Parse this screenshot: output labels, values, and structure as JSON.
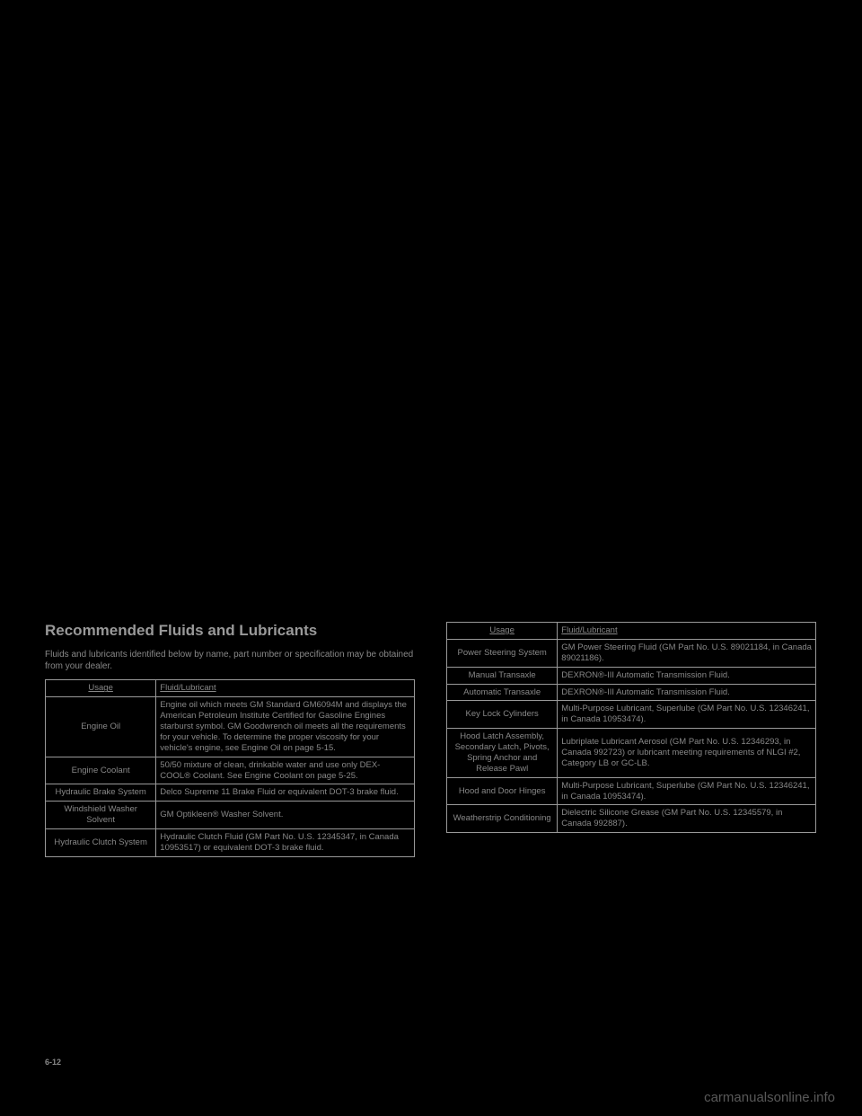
{
  "section_title": "Recommended Fluids and Lubricants",
  "intro": "Fluids and lubricants identified below by name, part number or specification may be obtained from your dealer.",
  "left_table": {
    "headers": [
      "Usage",
      "Fluid/Lubricant"
    ],
    "rows": [
      {
        "usage": "Engine Oil",
        "fluid": "Engine oil which meets GM Standard GM6094M and displays the American Petroleum Institute Certified for Gasoline Engines starburst symbol. GM Goodwrench oil meets all the requirements for your vehicle. To determine the proper viscosity for your vehicle's engine, see Engine Oil on page 5-15."
      },
      {
        "usage": "Engine Coolant",
        "fluid": "50/50 mixture of clean, drinkable water and use only DEX-COOL® Coolant. See Engine Coolant on page 5-25."
      },
      {
        "usage": "Hydraulic Brake System",
        "fluid": "Delco Supreme 11 Brake Fluid or equivalent DOT-3 brake fluid."
      },
      {
        "usage": "Windshield Washer Solvent",
        "fluid": "GM Optikleen® Washer Solvent."
      },
      {
        "usage": "Hydraulic Clutch System",
        "fluid": "Hydraulic Clutch Fluid (GM Part No. U.S. 12345347, in Canada 10953517) or equivalent DOT-3 brake fluid."
      }
    ]
  },
  "right_table": {
    "headers": [
      "Usage",
      "Fluid/Lubricant"
    ],
    "rows": [
      {
        "usage": "Power Steering System",
        "fluid": "GM Power Steering Fluid (GM Part No. U.S. 89021184, in Canada 89021186)."
      },
      {
        "usage": "Manual Transaxle",
        "fluid": "DEXRON®-III Automatic Transmission Fluid."
      },
      {
        "usage": "Automatic Transaxle",
        "fluid": "DEXRON®-III Automatic Transmission Fluid."
      },
      {
        "usage": "Key Lock Cylinders",
        "fluid": "Multi-Purpose Lubricant, Superlube (GM Part No. U.S. 12346241, in Canada 10953474)."
      },
      {
        "usage": "Hood Latch Assembly, Secondary Latch, Pivots, Spring Anchor and Release Pawl",
        "fluid": "Lubriplate Lubricant Aerosol (GM Part No. U.S. 12346293, in Canada 992723) or lubricant meeting requirements of NLGI #2, Category LB or GC-LB."
      },
      {
        "usage": "Hood and Door Hinges",
        "fluid": "Multi-Purpose Lubricant, Superlube (GM Part No. U.S. 12346241, in Canada 10953474)."
      },
      {
        "usage": "Weatherstrip Conditioning",
        "fluid": "Dielectric Silicone Grease (GM Part No. U.S. 12345579, in Canada 992887)."
      }
    ]
  },
  "page_number": "6-12",
  "watermark": "carmanualsonline.info",
  "colors": {
    "background": "#000000",
    "text": "#888888",
    "border": "#999999"
  }
}
